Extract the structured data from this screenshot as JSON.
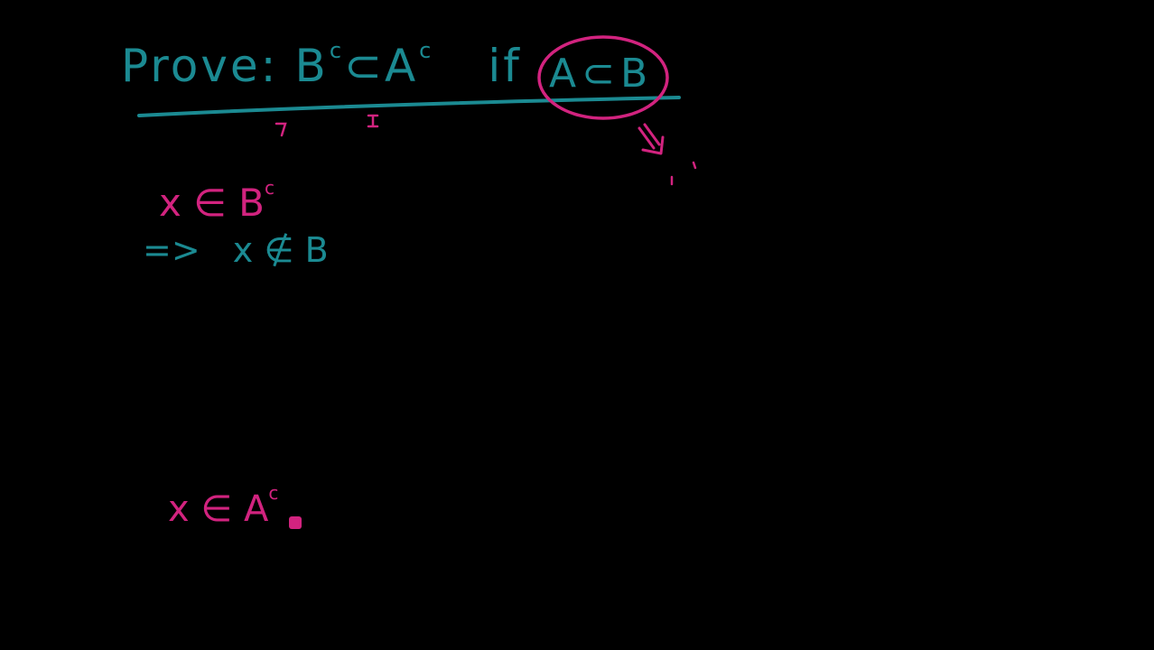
{
  "board": {
    "background": "#000000",
    "ink_colors": {
      "teal": "#1b8a92",
      "pink": "#d2237f"
    }
  },
  "title": {
    "prove_label": "Prove:",
    "statement_lhs": "B",
    "statement_lhs_sup": "c",
    "subset_symbol": "⊂",
    "statement_rhs": "A",
    "statement_rhs_sup": "c",
    "if_word": "if",
    "condition": "A⊂B"
  },
  "steps": {
    "line1": {
      "lhs": "x",
      "op": "∈",
      "set": "B",
      "sup": "c"
    },
    "line2": {
      "arrow": "=>",
      "lhs": "x",
      "op": "∉",
      "set": "B"
    },
    "line3": {
      "lhs": "x",
      "op": "∈",
      "set": "A",
      "sup": "c"
    }
  }
}
